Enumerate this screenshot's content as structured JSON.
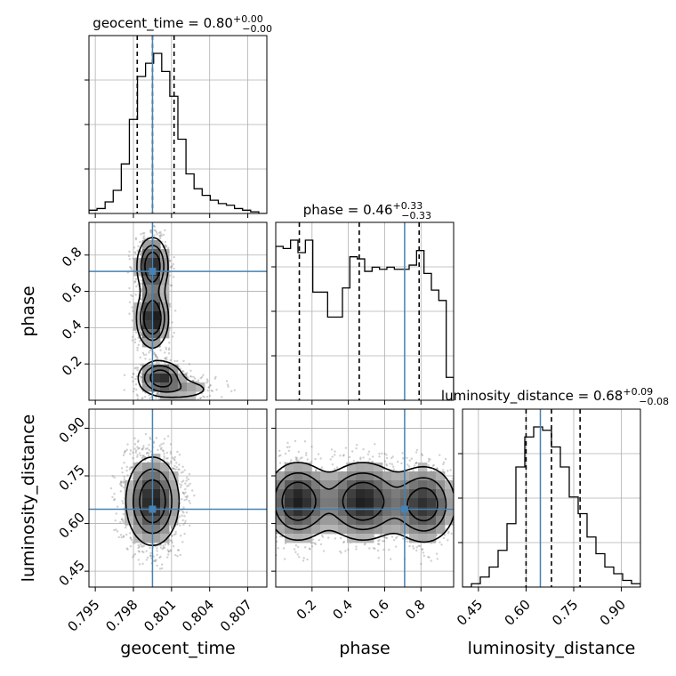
{
  "chart_data": {
    "type": "corner",
    "parameters": [
      "geocent_time",
      "phase",
      "luminosity_distance"
    ],
    "truths": {
      "geocent_time": 0.7995,
      "phase": 0.71,
      "luminosity_distance": 0.645
    },
    "marginals": [
      {
        "parameter": "geocent_time",
        "title": {
          "text": "geocent_time = 0.80",
          "plus": "+0.00",
          "minus": "−0.00"
        },
        "range": [
          0.7945,
          0.8085
        ],
        "quantiles": [
          0.7983,
          0.7995,
          0.8012
        ],
        "hist": [
          2,
          3,
          7,
          14,
          30,
          57,
          83,
          91,
          97,
          86,
          71,
          45,
          24,
          15,
          11,
          8,
          6,
          5,
          3,
          2,
          1,
          0
        ]
      },
      {
        "parameter": "phase",
        "title": {
          "text": "phase = 0.46",
          "plus": "+0.33",
          "minus": "−0.33"
        },
        "range": [
          0.0,
          0.98
        ],
        "quantiles": [
          0.13,
          0.46,
          0.79
        ],
        "hist": [
          74,
          73,
          77,
          71,
          77,
          52,
          52,
          40,
          40,
          54,
          69,
          68,
          62,
          64,
          63,
          64,
          63,
          63,
          65,
          72,
          61,
          53,
          48,
          11
        ]
      },
      {
        "parameter": "luminosity_distance",
        "title": {
          "text": "luminosity_distance = 0.68",
          "plus": "+0.09",
          "minus": "−0.08"
        },
        "range": [
          0.4,
          0.96
        ],
        "quantiles": [
          0.6,
          0.68,
          0.77
        ],
        "hist": [
          0,
          1,
          3,
          6,
          11,
          19,
          36,
          45,
          48,
          47,
          42,
          36,
          27,
          22,
          15,
          10,
          6,
          4,
          2,
          1
        ]
      }
    ],
    "axes": {
      "geocent_time": {
        "ticks": [
          0.795,
          0.798,
          0.801,
          0.804,
          0.807
        ],
        "tick_labels": [
          "0.795",
          "0.798",
          "0.801",
          "0.804",
          "0.807"
        ]
      },
      "phase": {
        "ticks": [
          0.2,
          0.4,
          0.6,
          0.8
        ],
        "tick_labels": [
          "0.2",
          "0.4",
          "0.6",
          "0.8"
        ]
      },
      "luminosity_distance": {
        "ticks": [
          0.45,
          0.6,
          0.75,
          0.9
        ],
        "tick_labels": [
          "0.45",
          "0.60",
          "0.75",
          "0.90"
        ]
      }
    },
    "x_labels": [
      "geocent_time",
      "phase",
      "luminosity_distance"
    ],
    "y_labels": [
      "phase",
      "luminosity_distance"
    ],
    "grid": true,
    "joint_densities": [
      {
        "x": "geocent_time",
        "y": "phase",
        "blobs": [
          {
            "x": 0.7995,
            "y": 0.74,
            "sx": 0.0007,
            "sy": 0.09,
            "w": 1.0
          },
          {
            "x": 0.7995,
            "y": 0.45,
            "sx": 0.0007,
            "sy": 0.09,
            "w": 1.1
          },
          {
            "x": 0.8001,
            "y": 0.13,
            "sx": 0.001,
            "sy": 0.05,
            "w": 0.9
          },
          {
            "x": 0.8018,
            "y": 0.06,
            "sx": 0.0018,
            "sy": 0.04,
            "w": 0.35
          }
        ]
      },
      {
        "x": "geocent_time",
        "y": "luminosity_distance",
        "blobs": [
          {
            "x": 0.7995,
            "y": 0.67,
            "sx": 0.0012,
            "sy": 0.08,
            "w": 1.0
          }
        ]
      },
      {
        "x": "phase",
        "y": "luminosity_distance",
        "blobs": [
          {
            "x": 0.12,
            "y": 0.67,
            "sx": 0.1,
            "sy": 0.07,
            "w": 1.0
          },
          {
            "x": 0.48,
            "y": 0.67,
            "sx": 0.12,
            "sy": 0.07,
            "w": 1.0
          },
          {
            "x": 0.82,
            "y": 0.66,
            "sx": 0.1,
            "sy": 0.07,
            "w": 0.9
          }
        ]
      }
    ],
    "colors": {
      "truth": "#4682b4",
      "hist": "#000000",
      "grid": "#b0b0b0"
    }
  }
}
